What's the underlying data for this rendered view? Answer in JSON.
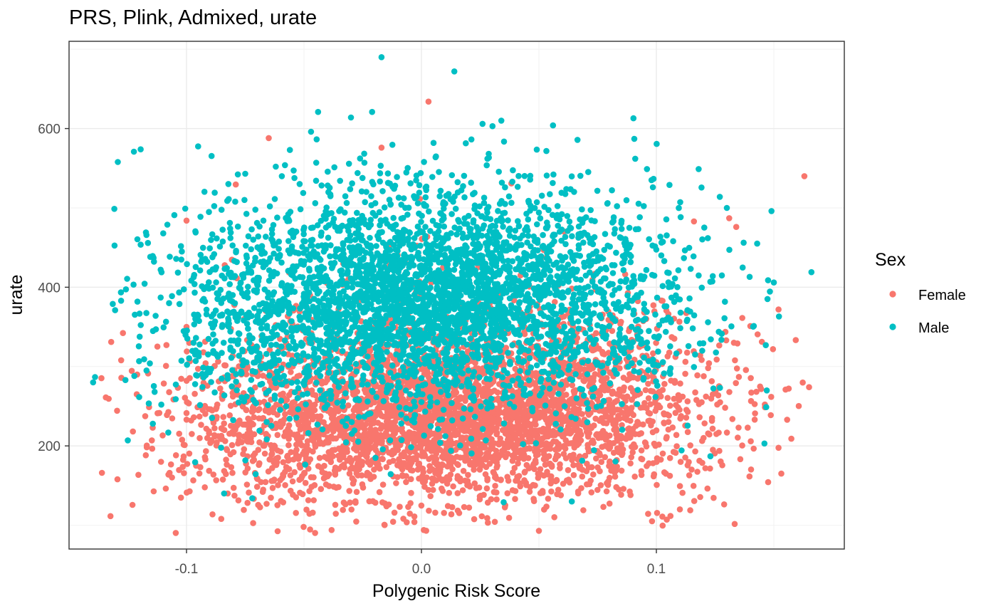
{
  "chart_data": {
    "type": "scatter",
    "title": "PRS, Plink, Admixed, urate",
    "xlabel": "Polygenic Risk Score",
    "ylabel": "urate",
    "xlim": [
      -0.15,
      0.18
    ],
    "ylim": [
      70,
      710
    ],
    "x_ticks": [
      -0.1,
      0.0,
      0.1
    ],
    "x_tick_labels": [
      "-0.1",
      "0.0",
      "0.1"
    ],
    "y_ticks": [
      200,
      400,
      600
    ],
    "y_tick_labels": [
      "200",
      "400",
      "600"
    ],
    "grid": true,
    "legend": {
      "title": "Sex",
      "placement": "right"
    },
    "series": [
      {
        "name": "Female",
        "color": "#F8766D",
        "points": [
          [
            -0.136,
            166
          ],
          [
            -0.121,
            290
          ],
          [
            -0.1,
            484
          ],
          [
            -0.1,
            350
          ],
          [
            -0.065,
            588
          ],
          [
            -0.017,
            576
          ],
          [
            0.003,
            634
          ],
          [
            0.163,
            540
          ],
          [
            0.165,
            274
          ],
          [
            0.155,
            271
          ],
          [
            0.152,
            372
          ],
          [
            0.142,
            241
          ],
          [
            0.134,
            476
          ],
          [
            0.131,
            487
          ],
          [
            0.116,
            483
          ],
          [
            0.11,
            120
          ],
          [
            0.05,
            93
          ],
          [
            0.001,
            94
          ],
          [
            -0.003,
            111
          ],
          [
            0.028,
            109
          ],
          [
            0.089,
            138
          ],
          [
            0.114,
            163
          ],
          [
            0.124,
            265
          ],
          [
            0.14,
            351
          ],
          [
            0.133,
            330
          ]
        ],
        "clusters": [
          {
            "cx": 0.01,
            "cy": 230,
            "sx": 0.042,
            "sy": 48,
            "n": 2100
          },
          {
            "cx": 0.02,
            "cy": 280,
            "sx": 0.05,
            "sy": 70,
            "n": 900
          },
          {
            "cx": -0.06,
            "cy": 220,
            "sx": 0.03,
            "sy": 55,
            "n": 500
          },
          {
            "cx": 0.08,
            "cy": 250,
            "sx": 0.032,
            "sy": 60,
            "n": 450
          }
        ]
      },
      {
        "name": "Male",
        "color": "#00BFC4",
        "points": [
          [
            -0.017,
            690
          ],
          [
            0.014,
            672
          ],
          [
            -0.044,
            621
          ],
          [
            -0.021,
            621
          ],
          [
            0.034,
            610
          ],
          [
            0.056,
            604
          ],
          [
            -0.047,
            596
          ],
          [
            -0.03,
            614
          ],
          [
            0.026,
            606
          ],
          [
            0.096,
            549
          ],
          [
            0.118,
            549
          ],
          [
            0.149,
            496
          ],
          [
            0.166,
            419
          ],
          [
            0.15,
            406
          ],
          [
            0.146,
            203
          ],
          [
            0.123,
            187
          ],
          [
            0.064,
            130
          ],
          [
            0.035,
            129
          ],
          [
            -0.072,
            134
          ],
          [
            -0.084,
            140
          ],
          [
            -0.125,
            207
          ],
          [
            -0.126,
            283
          ],
          [
            -0.111,
            387
          ],
          [
            -0.102,
            445
          ],
          [
            -0.075,
            543
          ],
          [
            -0.056,
            573
          ],
          [
            -0.062,
            552
          ],
          [
            0.091,
            562
          ],
          [
            0.127,
            514
          ],
          [
            0.13,
            500
          ]
        ],
        "clusters": [
          {
            "cx": 0.005,
            "cy": 390,
            "sx": 0.04,
            "sy": 55,
            "n": 1900
          },
          {
            "cx": -0.005,
            "cy": 330,
            "sx": 0.05,
            "sy": 60,
            "n": 800
          },
          {
            "cx": 0.0,
            "cy": 470,
            "sx": 0.05,
            "sy": 55,
            "n": 450
          },
          {
            "cx": -0.07,
            "cy": 360,
            "sx": 0.025,
            "sy": 60,
            "n": 350
          },
          {
            "cx": 0.08,
            "cy": 380,
            "sx": 0.028,
            "sy": 65,
            "n": 300
          }
        ]
      }
    ]
  }
}
